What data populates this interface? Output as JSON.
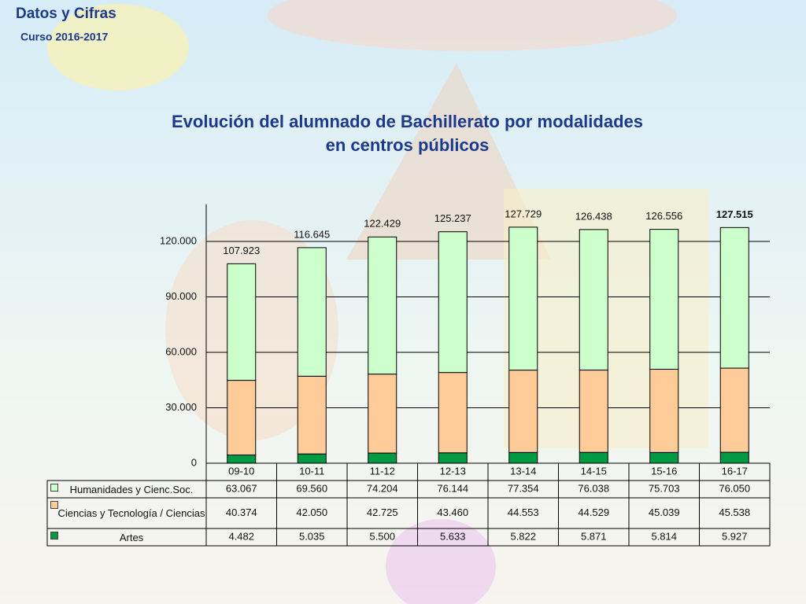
{
  "header": {
    "title": "Datos y Cifras",
    "subtitle": "Curso 2016-2017"
  },
  "chart_data": {
    "type": "stacked_bar",
    "title": "Evolución del alumnado de Bachillerato por modalidades en centros públicos",
    "categories": [
      "09-10",
      "10-11",
      "11-12",
      "12-13",
      "13-14",
      "14-15",
      "15-16",
      "16-17"
    ],
    "series": [
      {
        "name": "Artes",
        "color": "#009944",
        "values": [
          4482,
          5035,
          5500,
          5633,
          5822,
          5871,
          5814,
          5927
        ],
        "value_labels": [
          "4.482",
          "5.035",
          "5.500",
          "5.633",
          "5.822",
          "5.871",
          "5.814",
          "5.927"
        ]
      },
      {
        "name": "Ciencias y Tecnología / Ciencias",
        "color": "#ffcc99",
        "values": [
          40374,
          42050,
          42725,
          43460,
          44553,
          44529,
          45039,
          45538
        ],
        "value_labels": [
          "40.374",
          "42.050",
          "42.725",
          "43.460",
          "44.553",
          "44.529",
          "45.039",
          "45.538"
        ]
      },
      {
        "name": "Humanidades y Cienc.Soc.",
        "color": "#ccffcc",
        "values": [
          63067,
          69560,
          74204,
          76144,
          77354,
          76038,
          75703,
          76050
        ],
        "value_labels": [
          "63.067",
          "69.560",
          "74.204",
          "76.144",
          "77.354",
          "76.038",
          "75.703",
          "76.050"
        ]
      }
    ],
    "totals": {
      "values": [
        107923,
        116645,
        122429,
        125237,
        127729,
        126438,
        126556,
        127515
      ],
      "value_labels": [
        "107.923",
        "116.645",
        "122.429",
        "125.237",
        "127.729",
        "126.438",
        "126.556",
        "127.515"
      ]
    },
    "ylim": [
      0,
      140000
    ],
    "yticks": [
      0,
      {
        "value": 30000,
        "label": "30.000"
      },
      {
        "value": 60000,
        "label": "60.000"
      },
      {
        "value": 90000,
        "label": "90.000"
      },
      {
        "value": 120000,
        "label": "120.000"
      }
    ],
    "grid": true
  }
}
